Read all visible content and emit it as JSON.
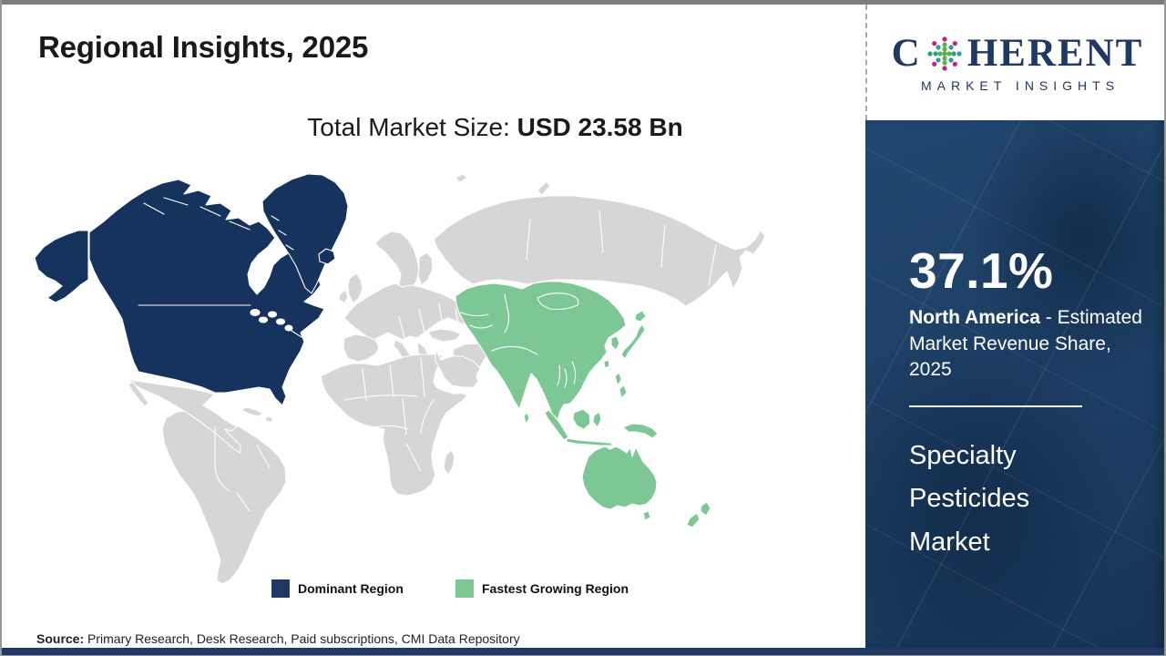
{
  "header": {
    "title": "Regional Insights, 2025"
  },
  "market": {
    "label": "Total Market Size:",
    "value": "USD 23.58 Bn"
  },
  "logo": {
    "c": "C",
    "rest": "HERENT",
    "tagline": "MARKET INSIGHTS"
  },
  "legend": {
    "dominant_label": "Dominant Region",
    "fastest_label": "Fastest Growing Region"
  },
  "sidebar": {
    "share": "37.1%",
    "region": "North America",
    "desc": "- Estimated Market Revenue Share, 2025",
    "market_name": "Specialty Pesticides Market"
  },
  "source": {
    "label": "Source:",
    "text": "Primary Research, Desk Research, Paid subscriptions, CMI Data Repository"
  },
  "colors": {
    "dominant": "#16335e",
    "fastest": "#7dc795",
    "land": "#d6d6d6",
    "accent_navy": "#1f3864",
    "logo_navy": "#1f3864",
    "globe_teal": "#2e9d8e",
    "globe_green": "#5cb053",
    "globe_magenta": "#c12381"
  },
  "map": {
    "fills": {
      "dominant": "#16335e",
      "fastest": "#7dc795",
      "land": "#d6d6d6"
    },
    "dominant_region": "North America",
    "fastest_region": "Asia Pacific"
  },
  "chart_data": {
    "type": "choropleth_map",
    "title": "Regional Insights, 2025",
    "total_market_size": "USD 23.58 Bn",
    "market": "Specialty Pesticides Market",
    "regions": [
      {
        "name": "North America",
        "legend": "Dominant Region",
        "estimated_market_revenue_share_2025_pct": 37.1,
        "color": "#16335e"
      },
      {
        "name": "Asia Pacific",
        "legend": "Fastest Growing Region",
        "color": "#7dc795"
      }
    ],
    "legend_position": "bottom",
    "source": "Primary Research, Desk Research, Paid subscriptions, CMI Data Repository"
  }
}
